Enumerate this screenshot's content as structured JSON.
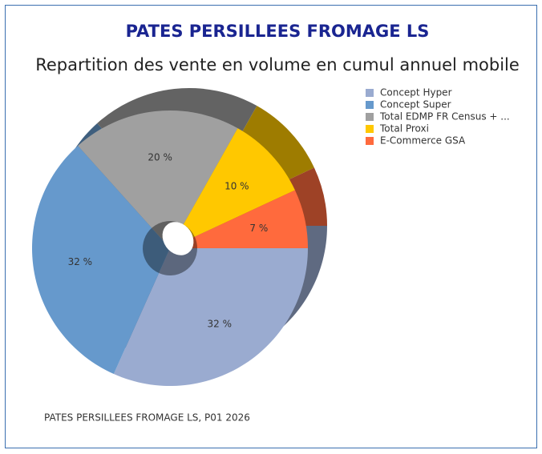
{
  "chart_data": {
    "type": "pie",
    "title": "PATES PERSILLEES FROMAGE LS",
    "subtitle": "Repartition des vente en volume en cumul annuel mobile",
    "categories": [
      "Concept Hyper",
      "Concept Super",
      "Total EDMP FR Census + ...",
      "Total Proxi",
      "E-Commerce GSA"
    ],
    "values": [
      32,
      32,
      20,
      10,
      7
    ],
    "value_labels": [
      "32 %",
      "32 %",
      "20 %",
      "10 %",
      "7 %"
    ],
    "colors": [
      "#9aabd0",
      "#6699cc",
      "#a0a0a0",
      "#ffc800",
      "#ff6a3d"
    ],
    "legend": "top-right",
    "footer": "PATES PERSILLEES FROMAGE LS, P01 2026"
  }
}
